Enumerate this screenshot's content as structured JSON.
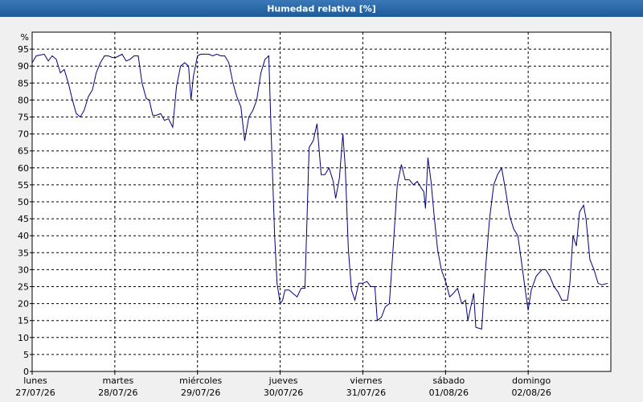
{
  "chart_data": {
    "type": "line",
    "title": "Humedad relativa [%]",
    "ylabel": "%",
    "xlim": [
      0,
      168
    ],
    "ylim": [
      0,
      100
    ],
    "yticks": [
      0,
      5,
      10,
      15,
      20,
      25,
      30,
      35,
      40,
      45,
      50,
      55,
      60,
      65,
      70,
      75,
      80,
      85,
      90,
      95
    ],
    "xticks": [
      {
        "value": 0,
        "label": "lunes",
        "date": "27/07/26"
      },
      {
        "value": 24,
        "label": "martes",
        "date": "28/07/26"
      },
      {
        "value": 48,
        "label": "miércoles",
        "date": "29/07/26"
      },
      {
        "value": 72,
        "label": "jueves",
        "date": "30/07/26"
      },
      {
        "value": 96,
        "label": "viernes",
        "date": "31/07/26"
      },
      {
        "value": 120,
        "label": "sábado",
        "date": "01/08/26"
      },
      {
        "value": 144,
        "label": "domingo",
        "date": "02/08/26"
      }
    ],
    "grid": true,
    "color": "#000080",
    "x": [
      0,
      1.2,
      3.5,
      4.7,
      5.8,
      7.0,
      8.2,
      9.3,
      10.5,
      11.7,
      12.8,
      14.0,
      15.1,
      16.3,
      17.5,
      18.6,
      19.8,
      21.0,
      22.1,
      23.3,
      24.2,
      25.2,
      26.1,
      27.3,
      28.4,
      29.6,
      30.8,
      31.9,
      33.1,
      34.0,
      35.0,
      36.1,
      37.3,
      38.4,
      39.6,
      40.8,
      41.9,
      43.1,
      44.3,
      45.4,
      46.1,
      46.8,
      48.0,
      48.9,
      50.1,
      51.3,
      52.4,
      53.6,
      54.8,
      55.9,
      57.1,
      58.3,
      59.4,
      60.6,
      61.7,
      62.9,
      64.1,
      65.2,
      66.4,
      67.6,
      68.7,
      69.4,
      70.4,
      71.1,
      72.0,
      72.7,
      73.4,
      74.6,
      75.7,
      76.9,
      78.1,
      79.2,
      80.4,
      81.6,
      82.7,
      83.9,
      85.0,
      86.2,
      87.4,
      88.1,
      89.2,
      90.2,
      90.9,
      91.8,
      92.7,
      93.7,
      94.8,
      96.0,
      97.2,
      98.3,
      99.5,
      100.2,
      101.4,
      102.5,
      103.7,
      104.9,
      106.0,
      107.2,
      108.3,
      109.5,
      110.7,
      111.8,
      113.0,
      113.7,
      114.2,
      114.9,
      115.8,
      116.7,
      117.7,
      118.8,
      120.2,
      121.2,
      122.3,
      123.5,
      124.7,
      125.8,
      126.5,
      128.2,
      128.8,
      130.5,
      131.6,
      132.8,
      134.0,
      135.1,
      136.3,
      137.5,
      138.6,
      139.8,
      141.0,
      142.1,
      143.3,
      144.0,
      144.9,
      146.3,
      148.0,
      149.1,
      150.3,
      151.5,
      152.6,
      153.8,
      155.4,
      156.1,
      157.0,
      158.0,
      158.9,
      160.1,
      160.8,
      161.9,
      163.1,
      164.3,
      165.4,
      167.1
    ],
    "values": [
      91,
      93,
      93.5,
      91.5,
      93,
      92,
      88,
      89,
      85,
      80,
      76,
      75,
      77,
      81,
      83,
      88,
      91,
      93,
      93,
      92.5,
      92.5,
      93,
      93.5,
      91.5,
      92,
      93,
      93,
      85,
      80.5,
      80,
      75.5,
      75.5,
      76,
      74,
      74.5,
      72,
      84,
      90,
      91,
      90,
      80,
      87,
      93,
      93.5,
      93.5,
      93.5,
      93,
      93.5,
      93,
      93,
      91,
      85,
      81,
      78,
      68,
      75,
      77,
      80,
      88,
      92,
      93,
      70,
      40,
      26,
      20,
      21,
      24,
      24,
      23,
      22,
      24.5,
      24.5,
      66,
      68,
      73,
      58,
      58,
      60,
      56,
      51,
      57,
      70,
      60,
      36,
      24,
      21,
      26,
      26,
      26.5,
      25,
      25,
      15,
      16,
      19,
      20,
      38,
      55,
      61,
      56.5,
      56.5,
      55,
      56,
      54,
      53,
      48,
      63,
      56,
      46,
      36,
      30,
      26,
      22,
      23,
      24.5,
      20,
      21,
      15,
      23,
      13,
      12.5,
      30,
      45,
      55,
      58,
      60,
      53,
      46,
      42,
      40,
      32,
      23,
      18,
      24,
      28,
      30,
      30,
      28,
      25,
      23.5,
      21,
      21,
      26,
      40,
      37,
      47,
      49,
      45,
      33,
      30,
      26,
      25.5,
      26
    ]
  }
}
